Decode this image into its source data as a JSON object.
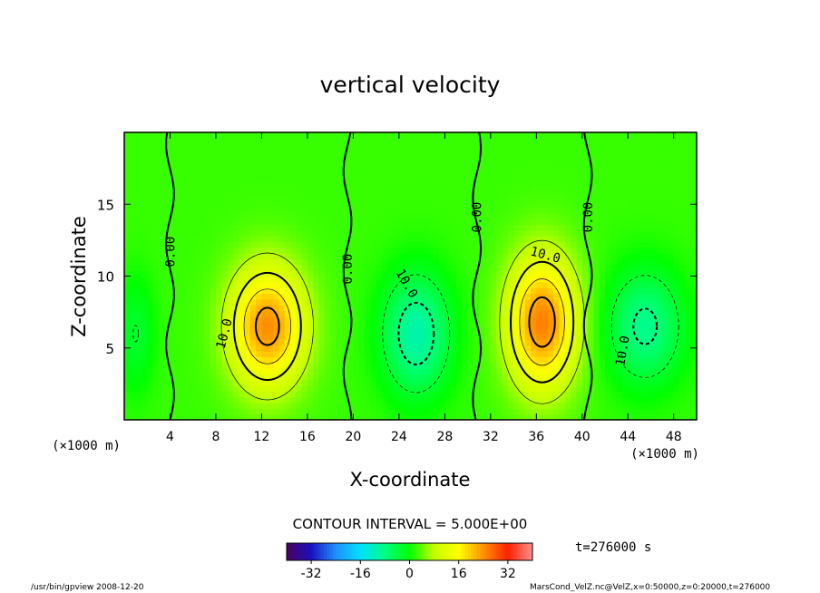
{
  "chart_data": {
    "type": "heatmap",
    "title": "vertical velocity",
    "xlabel": "X-coordinate",
    "ylabel": "Z-coordinate",
    "x_unit_label": "(×1000 m)",
    "xlim": [
      0,
      50
    ],
    "ylim": [
      0,
      20
    ],
    "x_ticks": [
      4,
      8,
      12,
      16,
      20,
      24,
      28,
      32,
      36,
      40,
      44,
      48
    ],
    "y_ticks": [
      5,
      10,
      15
    ],
    "contour_interval_text": "CONTOUR INTERVAL = 5.000E+00",
    "contour_labels": [
      "0.00",
      "10.0"
    ],
    "time_label": "t=276000 s",
    "colorbar": {
      "range": [
        -40,
        40
      ],
      "ticks": [
        -32,
        -16,
        0,
        16,
        32
      ],
      "colors": [
        "#4a0060",
        "#1a10c0",
        "#1e90ff",
        "#00e0ff",
        "#00ff80",
        "#00ff00",
        "#c8ff00",
        "#ffff00",
        "#ff9000",
        "#ff2000",
        "#ff9090"
      ]
    },
    "cells": [
      {
        "x": 12.5,
        "z": 6.5,
        "peak_w": 22,
        "sx": 3.3,
        "sz": 4.2
      },
      {
        "x": 36.5,
        "z": 6.8,
        "peak_w": 23,
        "sx": 3.0,
        "sz": 4.6
      },
      {
        "x": 25.5,
        "z": 6.0,
        "peak_w": -13,
        "sx": 3.0,
        "sz": 4.2
      },
      {
        "x": 45.5,
        "z": 6.5,
        "peak_w": -11,
        "sx": 3.3,
        "sz": 4.0
      },
      {
        "x": 1.0,
        "z": 6.0,
        "peak_w": -5,
        "sx": 1.6,
        "sz": 4.0
      }
    ],
    "zero_contour_x": [
      4.0,
      19.5,
      30.8,
      40.5
    ]
  },
  "footer": {
    "left": "/usr/bin/gpview   2008-12-20",
    "right": "MarsCond_VelZ.nc@VelZ,x=0:50000,z=0:20000,t=276000"
  }
}
